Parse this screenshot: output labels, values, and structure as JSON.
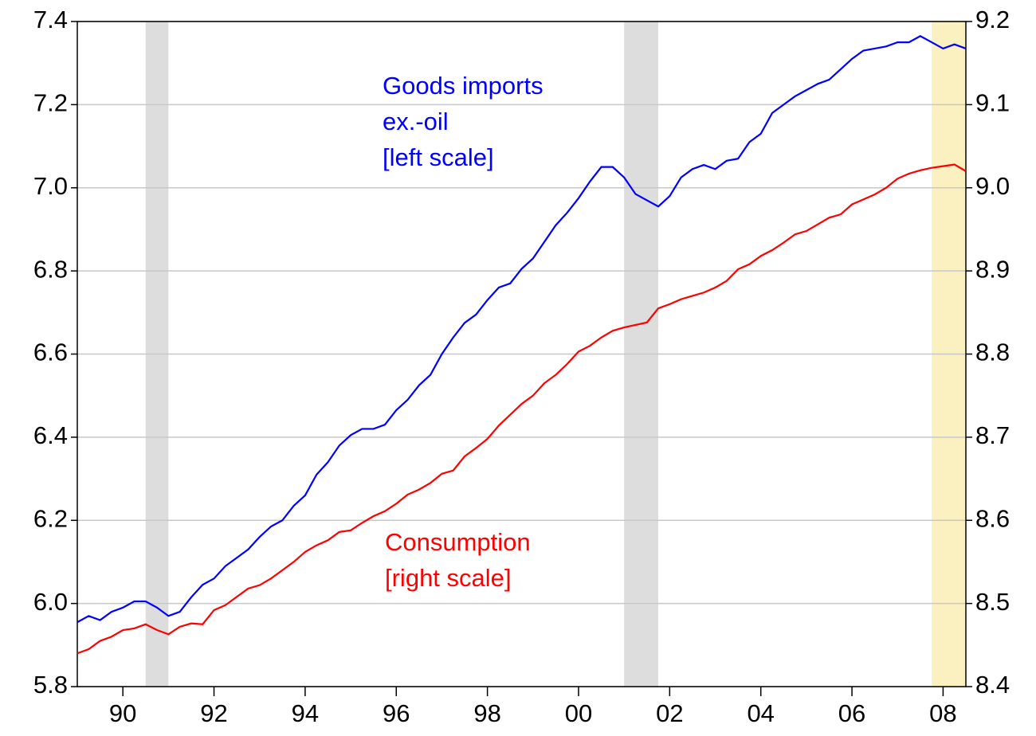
{
  "chart_data": {
    "type": "line",
    "xlim": [
      1989,
      2008.5
    ],
    "xticks": [
      {
        "value": 1990,
        "label": "90"
      },
      {
        "value": 1992,
        "label": "92"
      },
      {
        "value": 1994,
        "label": "94"
      },
      {
        "value": 1996,
        "label": "96"
      },
      {
        "value": 1998,
        "label": "98"
      },
      {
        "value": 2000,
        "label": "00"
      },
      {
        "value": 2002,
        "label": "02"
      },
      {
        "value": 2004,
        "label": "04"
      },
      {
        "value": 2006,
        "label": "06"
      },
      {
        "value": 2008,
        "label": "08"
      }
    ],
    "ylim": [
      5.8,
      7.4
    ],
    "yticks": [
      5.8,
      {
        "value": 6,
        "label": "6.0"
      },
      6.2,
      6.4,
      6.6,
      6.8,
      {
        "value": 7,
        "label": "7.0"
      },
      7.2,
      7.4
    ],
    "y2lim": [
      8.4,
      9.2
    ],
    "y2ticks": [
      8.4,
      8.5,
      8.6,
      8.7,
      8.8,
      8.9,
      {
        "value": 9,
        "label": "9.0"
      },
      9.1,
      9.2
    ],
    "grid": true,
    "shaded_periods": [
      {
        "start": 1990.5,
        "end": 1991.0,
        "color": "#dddddd"
      },
      {
        "start": 2001.0,
        "end": 2001.75,
        "color": "#dddddd"
      },
      {
        "start": 2007.75,
        "end": 2008.5,
        "color": "#fbf0c0"
      }
    ],
    "x": [
      1989,
      1989.25,
      1989.5,
      1989.75,
      1990,
      1990.25,
      1990.5,
      1990.75,
      1991,
      1991.25,
      1991.5,
      1991.75,
      1992,
      1992.25,
      1992.5,
      1992.75,
      1993,
      1993.25,
      1993.5,
      1993.75,
      1994,
      1994.25,
      1994.5,
      1994.75,
      1995,
      1995.25,
      1995.5,
      1995.75,
      1996,
      1996.25,
      1996.5,
      1996.75,
      1997,
      1997.25,
      1997.5,
      1997.75,
      1998,
      1998.25,
      1998.5,
      1998.75,
      1999,
      1999.25,
      1999.5,
      1999.75,
      2000,
      2000.25,
      2000.5,
      2000.75,
      2001,
      2001.25,
      2001.5,
      2001.75,
      2002,
      2002.25,
      2002.5,
      2002.75,
      2003,
      2003.25,
      2003.5,
      2003.75,
      2004,
      2004.25,
      2004.5,
      2004.75,
      2005,
      2005.25,
      2005.5,
      2005.75,
      2006,
      2006.25,
      2006.5,
      2006.75,
      2007,
      2007.25,
      2007.5,
      2007.75,
      2008,
      2008.25,
      2008.5
    ],
    "series": [
      {
        "name": "Goods imports ex.-oil",
        "color": "#0000ff",
        "axis": "y",
        "values": [
          5.955,
          5.97,
          5.96,
          5.98,
          5.99,
          6.005,
          6.005,
          5.99,
          5.97,
          5.98,
          6.015,
          6.045,
          6.06,
          6.09,
          6.11,
          6.13,
          6.16,
          6.185,
          6.2,
          6.235,
          6.26,
          6.31,
          6.34,
          6.38,
          6.405,
          6.42,
          6.42,
          6.43,
          6.465,
          6.49,
          6.525,
          6.55,
          6.6,
          6.64,
          6.675,
          6.695,
          6.73,
          6.76,
          6.77,
          6.805,
          6.83,
          6.87,
          6.91,
          6.94,
          6.975,
          7.015,
          7.05,
          7.05,
          7.025,
          6.985,
          6.97,
          6.955,
          6.98,
          7.025,
          7.045,
          7.055,
          7.045,
          7.065,
          7.07,
          7.11,
          7.13,
          7.18,
          7.2,
          7.22,
          7.235,
          7.25,
          7.26,
          7.285,
          7.31,
          7.33,
          7.335,
          7.34,
          7.35,
          7.35,
          7.365,
          7.35,
          7.335,
          7.345,
          7.335
        ]
      },
      {
        "name": "Consumption",
        "color": "#ff0000",
        "axis": "y2",
        "values": [
          8.44,
          8.445,
          8.455,
          8.46,
          8.468,
          8.47,
          8.475,
          8.468,
          8.463,
          8.472,
          8.476,
          8.475,
          8.492,
          8.498,
          8.508,
          8.518,
          8.522,
          8.53,
          8.54,
          8.55,
          8.562,
          8.57,
          8.576,
          8.586,
          8.588,
          8.597,
          8.605,
          8.611,
          8.62,
          8.631,
          8.637,
          8.645,
          8.656,
          8.66,
          8.677,
          8.687,
          8.698,
          8.714,
          8.727,
          8.74,
          8.75,
          8.765,
          8.775,
          8.788,
          8.803,
          8.81,
          8.82,
          8.828,
          8.832,
          8.835,
          8.838,
          8.855,
          8.86,
          8.866,
          8.87,
          8.874,
          8.88,
          8.888,
          8.902,
          8.908,
          8.918,
          8.925,
          8.934,
          8.944,
          8.948,
          8.956,
          8.964,
          8.968,
          8.98,
          8.986,
          8.992,
          9.0,
          9.011,
          9.017,
          9.021,
          9.024,
          9.026,
          9.028,
          9.02
        ]
      }
    ],
    "annotations": [
      {
        "lines": [
          "Goods imports",
          "ex.-oil",
          "[left scale]"
        ],
        "color": "#0000ff"
      },
      {
        "lines": [
          "Consumption",
          "[right scale]"
        ],
        "color": "#ff0000"
      }
    ]
  }
}
